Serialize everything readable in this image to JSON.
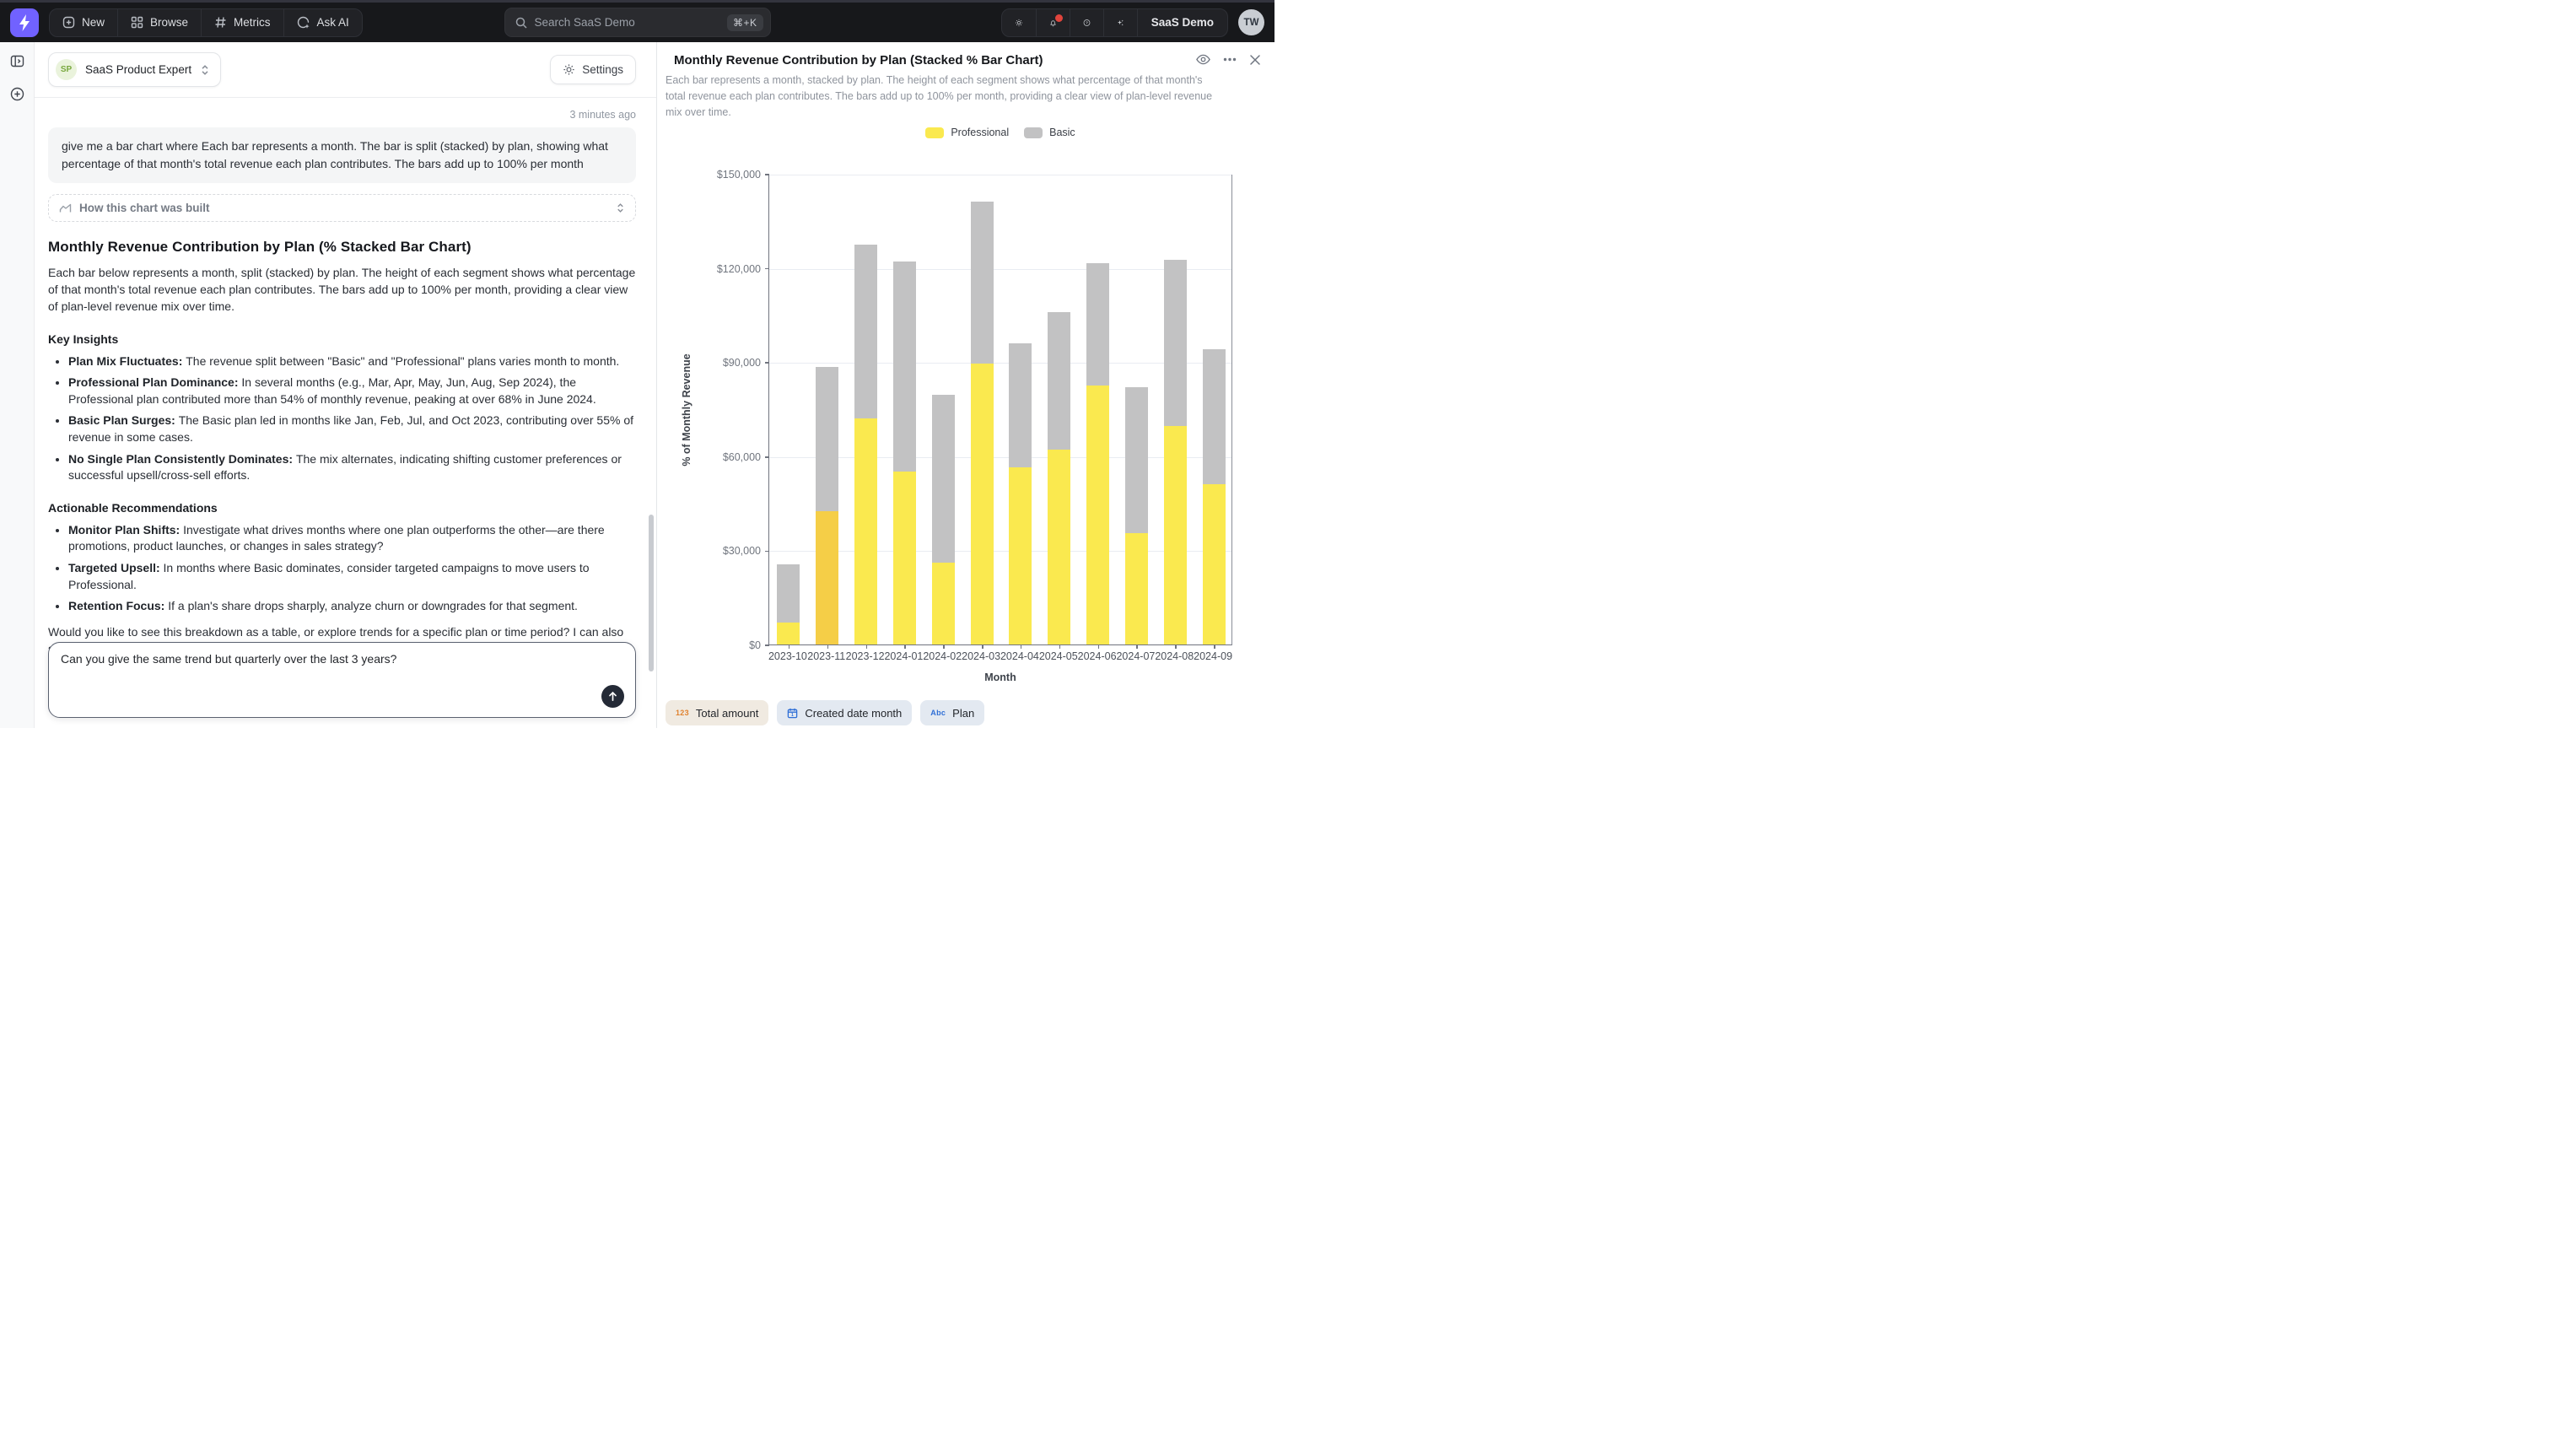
{
  "topnav": {
    "nav_items": [
      {
        "label": "New"
      },
      {
        "label": "Browse"
      },
      {
        "label": "Metrics"
      },
      {
        "label": "Ask AI"
      }
    ],
    "search": {
      "placeholder": "Search SaaS Demo",
      "shortcut": "⌘+K"
    },
    "right": {
      "project_label": "SaaS Demo",
      "avatar_initials": "TW"
    }
  },
  "chat": {
    "agent": {
      "initials": "SP",
      "name": "SaaS Product Expert"
    },
    "settings_label": "Settings",
    "timestamp": "3 minutes ago",
    "user_message": "give me a bar chart where Each bar represents a month. The bar is split (stacked) by plan, showing what percentage of that month's total revenue each plan contributes. The bars add up to 100% per month",
    "how_built_label": "How this chart was built",
    "response": {
      "title": "Monthly Revenue Contribution by Plan (% Stacked Bar Chart)",
      "intro": "Each bar below represents a month, split (stacked) by plan. The height of each segment shows what percentage of that month's total revenue each plan contributes. The bars add up to 100% per month, providing a clear view of plan-level revenue mix over time.",
      "key_insights_title": "Key Insights",
      "key_insights": [
        {
          "lead": "Plan Mix Fluctuates:",
          "text": "The revenue split between \"Basic\" and \"Professional\" plans varies month to month."
        },
        {
          "lead": "Professional Plan Dominance:",
          "text": "In several months (e.g., Mar, Apr, May, Jun, Aug, Sep 2024), the Professional plan contributed more than 54% of monthly revenue, peaking at over 68% in June 2024."
        },
        {
          "lead": "Basic Plan Surges:",
          "text": "The Basic plan led in months like Jan, Feb, Jul, and Oct 2023, contributing over 55% of revenue in some cases."
        },
        {
          "lead": "No Single Plan Consistently Dominates:",
          "text": "The mix alternates, indicating shifting customer preferences or successful upsell/cross-sell efforts."
        }
      ],
      "recommendations_title": "Actionable Recommendations",
      "recommendations": [
        {
          "lead": "Monitor Plan Shifts:",
          "text": "Investigate what drives months where one plan outperforms the other—are there promotions, product launches, or changes in sales strategy?"
        },
        {
          "lead": "Targeted Upsell:",
          "text": "In months where Basic dominates, consider targeted campaigns to move users to Professional."
        },
        {
          "lead": "Retention Focus:",
          "text": "If a plan's share drops sharply, analyze churn or downgrades for that segment."
        }
      ],
      "closing": "Would you like to see this breakdown as a table, or explore trends for a specific plan or time period? I can also search for existing dashboards or charts about revenue by plan if you'd like to explore more related content."
    },
    "input": {
      "value": "Can you give the same trend but quarterly over the last 3 years?"
    }
  },
  "right_panel": {
    "title": "Monthly Revenue Contribution by Plan (Stacked % Bar Chart)",
    "description": "Each bar represents a month, stacked by plan. The height of each segment shows what percentage of that month's total revenue each plan contributes. The bars add up to 100% per month, providing a clear view of plan-level revenue mix over time.",
    "fields": [
      {
        "label": "Total amount",
        "icon": "123",
        "icon_color": "#E0822F",
        "bg": "#F0EAE1"
      },
      {
        "label": "Created date month",
        "icon": "calendar",
        "icon_color": "#2F6FD6",
        "bg": "#E3E9F1"
      },
      {
        "label": "Plan",
        "icon": "Abc",
        "icon_color": "#2F6FD6",
        "bg": "#E3E9F1"
      }
    ]
  },
  "chart_data": {
    "type": "bar",
    "stacked": true,
    "title": "Monthly Revenue Contribution by Plan (Stacked % Bar Chart)",
    "xlabel": "Month",
    "ylabel": "% of Monthly Revenue",
    "ylim": [
      0,
      150000
    ],
    "ytick_step": 30000,
    "ytick_labels": [
      "$0",
      "$30,000",
      "$60,000",
      "$90,000",
      "$120,000",
      "$150,000"
    ],
    "grid": true,
    "legend_position": "top",
    "categories": [
      "2023-10",
      "2023-11",
      "2023-12",
      "2024-01",
      "2024-02",
      "2024-03",
      "2024-04",
      "2024-05",
      "2024-06",
      "2024-07",
      "2024-08",
      "2024-09"
    ],
    "series": [
      {
        "name": "Professional",
        "color": "#FAE94F",
        "values": [
          7000,
          42500,
          72000,
          55000,
          26000,
          89500,
          56500,
          62000,
          82500,
          35500,
          69500,
          51000
        ]
      },
      {
        "name": "Basic",
        "color": "#C2C2C3",
        "values": [
          18500,
          46000,
          55500,
          67000,
          53500,
          51500,
          39500,
          44000,
          39000,
          46500,
          53000,
          43000
        ]
      }
    ],
    "highlight": {
      "series": "Professional",
      "month_index": 1,
      "color": "#F5CE47"
    }
  }
}
